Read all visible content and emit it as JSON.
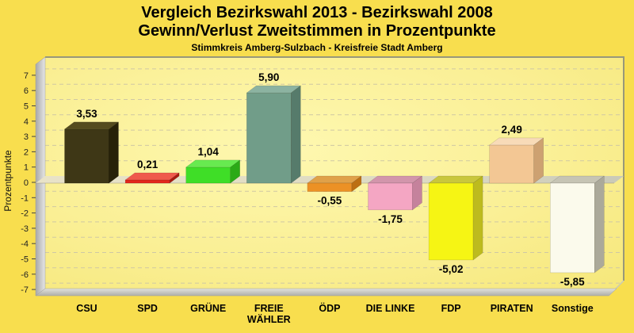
{
  "title": {
    "line1": "Vergleich Bezirkswahl 2013 - Bezirkswahl 2008",
    "line2": "Gewinn/Verlust Zweitstimmen in Prozentpunkte",
    "subtitle": "Stimmkreis Amberg-Sulzbach - Kreisfreie Stadt Amberg"
  },
  "chart_data": {
    "type": "bar",
    "projection": "3d",
    "title": "Vergleich Bezirkswahl 2013 - Bezirkswahl 2008 / Gewinn/Verlust Zweitstimmen in Prozentpunkte",
    "subtitle": "Stimmkreis Amberg-Sulzbach - Kreisfreie Stadt Amberg",
    "xlabel": "",
    "ylabel": "Prozentpunkte",
    "ylim": [
      -7,
      7
    ],
    "ytick_step": 1,
    "yticks": [
      -7,
      -6,
      -5,
      -4,
      -3,
      -2,
      -1,
      0,
      1,
      2,
      3,
      4,
      5,
      6,
      7
    ],
    "grid": "horizontal-dashed",
    "legend": "none",
    "categories": [
      "CSU",
      "SPD",
      "GRÜNE",
      "FREIE WÄHLER",
      "ÖDP",
      "DIE LINKE",
      "FDP",
      "PIRATEN",
      "Sonstige"
    ],
    "values": [
      3.53,
      0.21,
      1.04,
      5.9,
      -0.55,
      -1.75,
      -5.02,
      2.49,
      -5.85
    ],
    "value_labels": [
      "3,53",
      "0,21",
      "1,04",
      "5,90",
      "-0,55",
      "-1,75",
      "-5,02",
      "2,49",
      "-5,85"
    ],
    "bars": [
      {
        "party": "CSU",
        "label_lines": [
          "CSU"
        ],
        "value": 3.53,
        "value_label": "3,53",
        "front": "#3E3716",
        "top": "#544B1F",
        "side": "#272108"
      },
      {
        "party": "SPD",
        "label_lines": [
          "SPD"
        ],
        "value": 0.21,
        "value_label": "0,21",
        "front": "#E2261B",
        "top": "#EF5A4C",
        "side": "#A81A0F"
      },
      {
        "party": "GRÜNE",
        "label_lines": [
          "GRÜNE"
        ],
        "value": 1.04,
        "value_label": "1,04",
        "front": "#3FDE27",
        "top": "#67EA50",
        "side": "#2BAA17"
      },
      {
        "party": "FREIE WÄHLER",
        "label_lines": [
          "FREIE",
          "WÄHLER"
        ],
        "value": 5.9,
        "value_label": "5,90",
        "front": "#719D89",
        "top": "#8CB3A1",
        "side": "#567B6B"
      },
      {
        "party": "ÖDP",
        "label_lines": [
          "ÖDP"
        ],
        "value": -0.55,
        "value_label": "-0,55",
        "front": "#EC9125",
        "top": "#E0A149",
        "side": "#BC6F12"
      },
      {
        "party": "DIE LINKE",
        "label_lines": [
          "DIE LINKE"
        ],
        "value": -1.75,
        "value_label": "-1,75",
        "front": "#F4A6C3",
        "top": "#D295AB",
        "side": "#C5829C"
      },
      {
        "party": "FDP",
        "label_lines": [
          "FDP"
        ],
        "value": -5.02,
        "value_label": "-5,02",
        "front": "#F6F514",
        "top": "#C9C73C",
        "side": "#BDBB1E"
      },
      {
        "party": "PIRATEN",
        "label_lines": [
          "PIRATEN"
        ],
        "value": 2.49,
        "value_label": "2,49",
        "front": "#F3C794",
        "top": "#F8DBB8",
        "side": "#CDA171"
      },
      {
        "party": "Sonstige",
        "label_lines": [
          "Sonstige"
        ],
        "value": -5.85,
        "value_label": "-5,85",
        "front": "#FBFAEC",
        "top": "#C6C4B4",
        "side": "#ABA99A"
      }
    ],
    "colors": {
      "background": "#F8DE4E",
      "panel_center": "#FEF8B0",
      "panel_edge": "#F6E87C",
      "panel_border": "#98987A",
      "grid_line": "#CFC8A4",
      "wall_dark": "#A8A8A8",
      "wall_light": "#E6E6E6",
      "floor_light": "#E3E3DC",
      "floor_dark": "#AEAEA8",
      "zero_plane_left": "#E9E3C8",
      "zero_plane_right": "#C9C9B8",
      "text": "#000000"
    }
  }
}
